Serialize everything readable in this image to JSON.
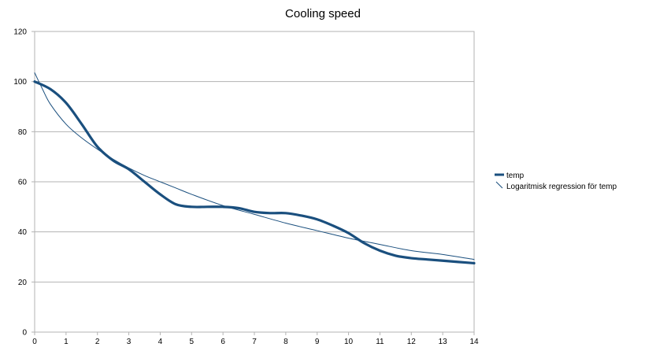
{
  "chart_data": {
    "type": "line",
    "title": "Cooling speed",
    "xlabel": "",
    "ylabel": "",
    "xlim": [
      0,
      14
    ],
    "ylim": [
      0,
      120
    ],
    "x_ticks": [
      0,
      1,
      2,
      3,
      4,
      5,
      6,
      7,
      8,
      9,
      10,
      11,
      12,
      13,
      14
    ],
    "y_ticks": [
      0,
      20,
      40,
      60,
      80,
      100,
      120
    ],
    "grid": "horizontal",
    "legend_position": "right",
    "series": [
      {
        "name": "temp",
        "style": "thick-smooth",
        "x": [
          0,
          0.5,
          1,
          1.5,
          2,
          2.5,
          3,
          3.5,
          4,
          4.5,
          5,
          5.5,
          6,
          6.5,
          7,
          7.5,
          8,
          8.5,
          9,
          9.5,
          10,
          10.5,
          11,
          11.5,
          12,
          12.5,
          13,
          13.5,
          14
        ],
        "values": [
          100,
          97,
          91.5,
          83,
          74,
          68.5,
          65,
          60,
          55,
          51,
          50,
          50,
          50,
          49.5,
          48,
          47.5,
          47.5,
          46.5,
          45,
          42.5,
          39.5,
          35.5,
          32.5,
          30.5,
          29.5,
          29,
          28.5,
          28,
          27.5
        ]
      },
      {
        "name": "Logaritmisk regression för temp",
        "style": "thin",
        "x": [
          0,
          0.25,
          0.5,
          1,
          1.5,
          2,
          2.5,
          3,
          3.5,
          4,
          4.5,
          5,
          6,
          7,
          8,
          9,
          10,
          11,
          12,
          13,
          14
        ],
        "values": [
          103.5,
          97,
          91,
          83,
          77.5,
          73,
          69,
          65.5,
          62.5,
          60,
          57.5,
          55,
          50.5,
          47,
          43.5,
          40.5,
          37.5,
          35,
          32.5,
          31,
          29
        ]
      }
    ]
  },
  "colors": {
    "series": "#1a4f7e",
    "grid": "#b3b3b3",
    "axis": "#b3b3b3"
  }
}
